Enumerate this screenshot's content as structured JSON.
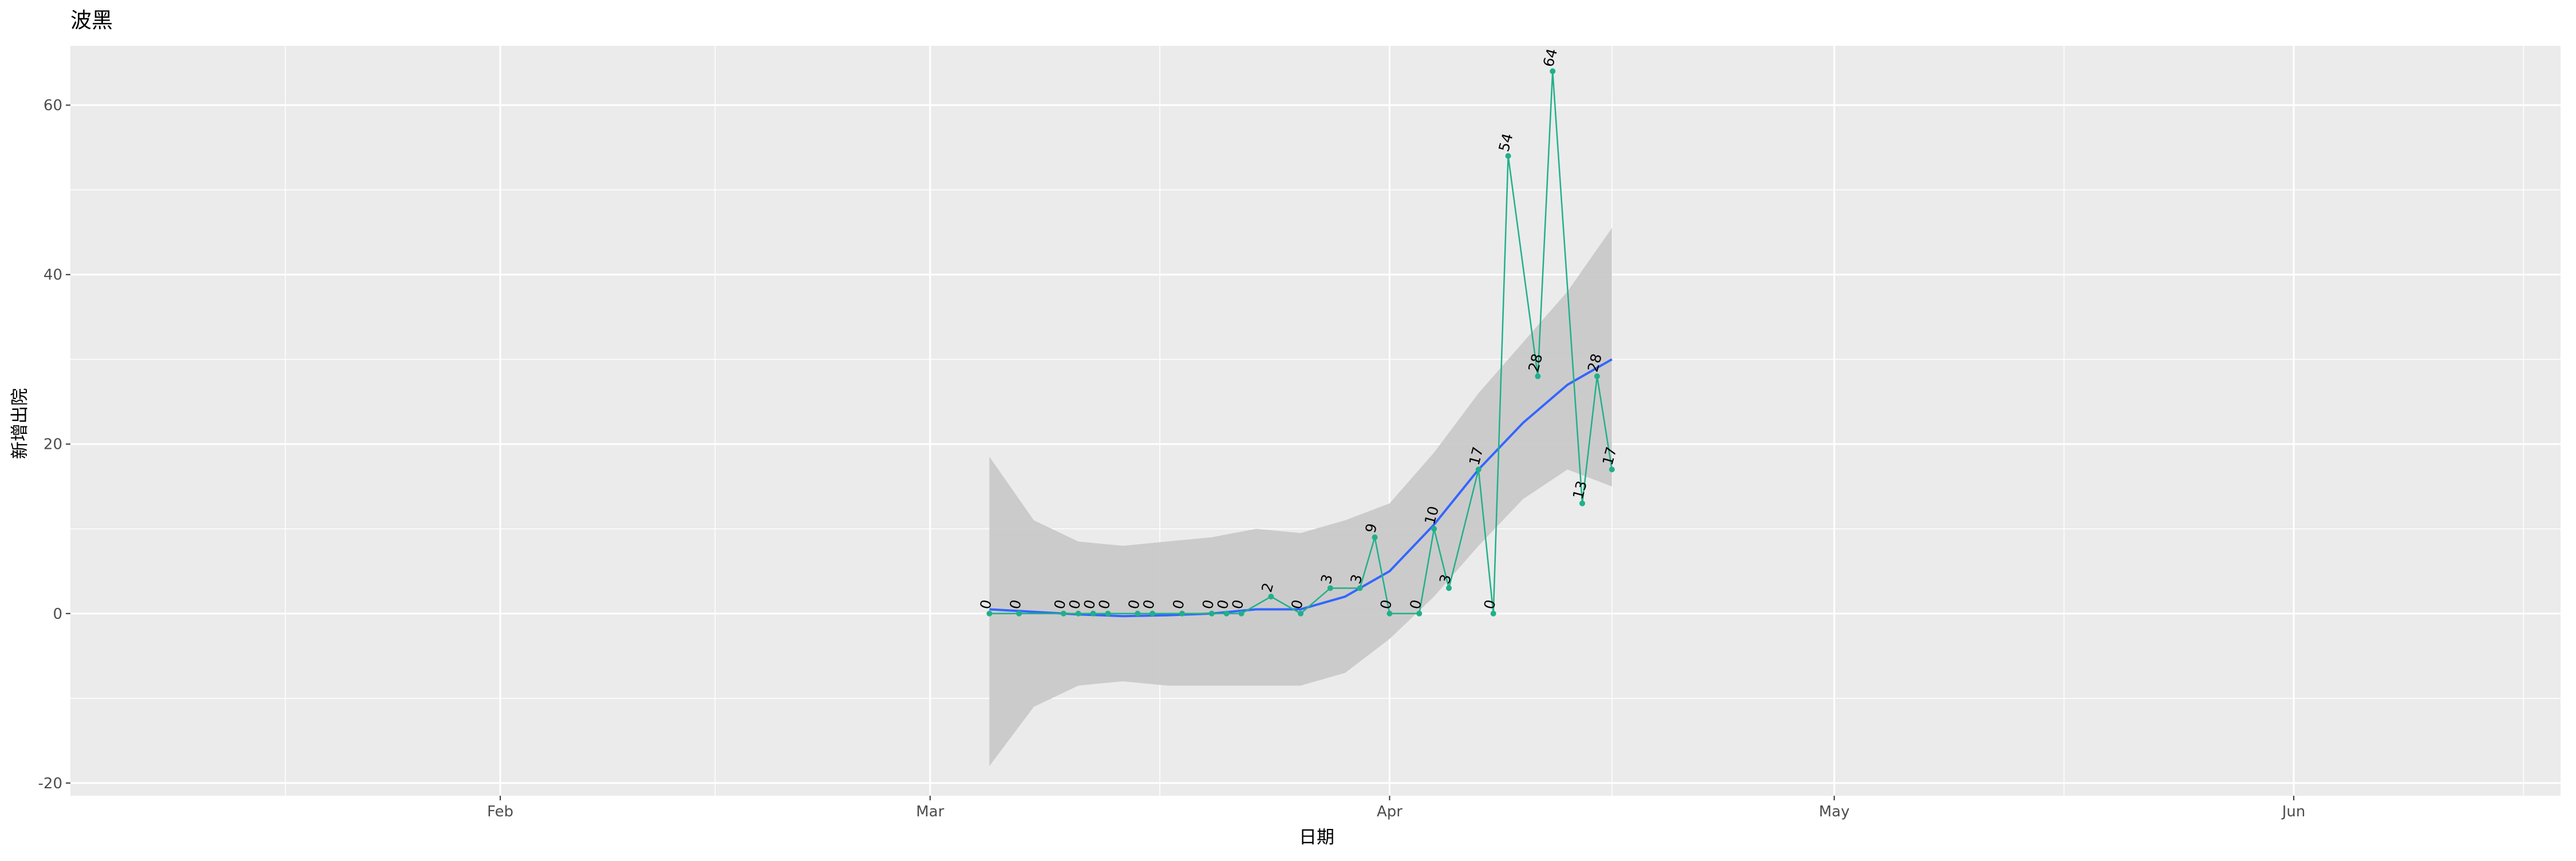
{
  "chart_data": {
    "type": "line",
    "title": "波黑",
    "xlabel": "日期",
    "ylabel": "新增出院",
    "x_axis": {
      "type": "date",
      "range": [
        "2020-01-03",
        "2020-06-19"
      ],
      "ticks": [
        {
          "date": "2020-02-01",
          "label": "Feb"
        },
        {
          "date": "2020-03-01",
          "label": "Mar"
        },
        {
          "date": "2020-04-01",
          "label": "Apr"
        },
        {
          "date": "2020-05-01",
          "label": "May"
        },
        {
          "date": "2020-06-01",
          "label": "Jun"
        }
      ]
    },
    "y_axis": {
      "range": [
        -21.5,
        67
      ],
      "ticks": [
        -20,
        0,
        20,
        40,
        60
      ],
      "tick_labels": [
        "-20",
        "0",
        "20",
        "40",
        "60"
      ]
    },
    "grid": true,
    "series": [
      {
        "kind": "line+points+labels",
        "color": "#20b08a",
        "points": [
          {
            "date": "2020-03-05",
            "value": 0
          },
          {
            "date": "2020-03-07",
            "value": 0
          },
          {
            "date": "2020-03-10",
            "value": 0
          },
          {
            "date": "2020-03-11",
            "value": 0
          },
          {
            "date": "2020-03-12",
            "value": 0
          },
          {
            "date": "2020-03-13",
            "value": 0
          },
          {
            "date": "2020-03-15",
            "value": 0
          },
          {
            "date": "2020-03-16",
            "value": 0
          },
          {
            "date": "2020-03-18",
            "value": 0
          },
          {
            "date": "2020-03-20",
            "value": 0
          },
          {
            "date": "2020-03-21",
            "value": 0
          },
          {
            "date": "2020-03-22",
            "value": 0
          },
          {
            "date": "2020-03-24",
            "value": 2
          },
          {
            "date": "2020-03-26",
            "value": 0
          },
          {
            "date": "2020-03-28",
            "value": 3
          },
          {
            "date": "2020-03-30",
            "value": 3
          },
          {
            "date": "2020-03-31",
            "value": 9
          },
          {
            "date": "2020-04-01",
            "value": 0
          },
          {
            "date": "2020-04-03",
            "value": 0
          },
          {
            "date": "2020-04-04",
            "value": 10
          },
          {
            "date": "2020-04-05",
            "value": 3
          },
          {
            "date": "2020-04-07",
            "value": 17
          },
          {
            "date": "2020-04-08",
            "value": 0
          },
          {
            "date": "2020-04-09",
            "value": 54
          },
          {
            "date": "2020-04-11",
            "value": 28
          },
          {
            "date": "2020-04-12",
            "value": 64
          },
          {
            "date": "2020-04-14",
            "value": 13
          },
          {
            "date": "2020-04-15",
            "value": 28
          },
          {
            "date": "2020-04-16",
            "value": 17
          }
        ]
      },
      {
        "kind": "smooth",
        "color": "#3366ff",
        "band_color": "#c9c9c9",
        "points": [
          {
            "date": "2020-03-05",
            "value": 0.5,
            "lower": -18,
            "upper": 18.5
          },
          {
            "date": "2020-03-08",
            "value": 0.2,
            "lower": -11,
            "upper": 11
          },
          {
            "date": "2020-03-11",
            "value": -0.1,
            "lower": -8.5,
            "upper": 8.5
          },
          {
            "date": "2020-03-14",
            "value": -0.3,
            "lower": -8,
            "upper": 8
          },
          {
            "date": "2020-03-17",
            "value": -0.2,
            "lower": -8.5,
            "upper": 8.5
          },
          {
            "date": "2020-03-20",
            "value": 0,
            "lower": -8.5,
            "upper": 9
          },
          {
            "date": "2020-03-23",
            "value": 0.5,
            "lower": -8.5,
            "upper": 10
          },
          {
            "date": "2020-03-26",
            "value": 0.5,
            "lower": -8.5,
            "upper": 9.5
          },
          {
            "date": "2020-03-29",
            "value": 2,
            "lower": -7,
            "upper": 11
          },
          {
            "date": "2020-04-01",
            "value": 5,
            "lower": -3,
            "upper": 13
          },
          {
            "date": "2020-04-04",
            "value": 10.5,
            "lower": 2,
            "upper": 19
          },
          {
            "date": "2020-04-07",
            "value": 17,
            "lower": 8,
            "upper": 26
          },
          {
            "date": "2020-04-10",
            "value": 22.5,
            "lower": 13.5,
            "upper": 32
          },
          {
            "date": "2020-04-13",
            "value": 27,
            "lower": 17,
            "upper": 38
          },
          {
            "date": "2020-04-16",
            "value": 30,
            "lower": 15,
            "upper": 45.5
          }
        ]
      }
    ]
  }
}
